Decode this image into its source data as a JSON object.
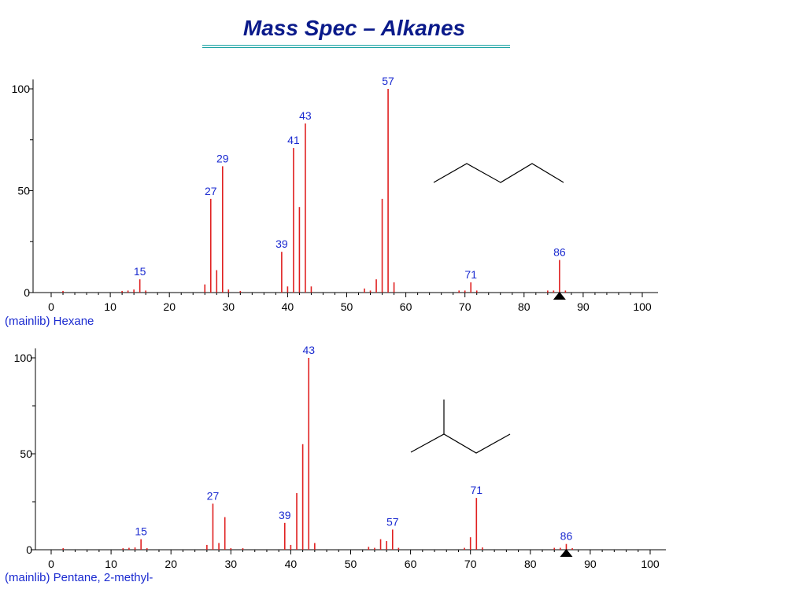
{
  "slide": {
    "title": "Mass Spec – Alkanes"
  },
  "chart_data": [
    {
      "type": "bar",
      "label": "(mainlib) Hexane",
      "x_ticks": [
        0,
        10,
        20,
        30,
        40,
        50,
        60,
        70,
        80,
        90,
        100
      ],
      "y_ticks": [
        0,
        50,
        100
      ],
      "xlim": [
        0,
        100
      ],
      "ylim": [
        0,
        100
      ],
      "molecular_ion_marker": 86,
      "color": "#e02020",
      "peaks": [
        {
          "mz": 2,
          "i": 0.8
        },
        {
          "mz": 12,
          "i": 0.8
        },
        {
          "mz": 13,
          "i": 1.0
        },
        {
          "mz": 14,
          "i": 1.5
        },
        {
          "mz": 15,
          "i": 6.5
        },
        {
          "mz": 16,
          "i": 1.0
        },
        {
          "mz": 26,
          "i": 4.0
        },
        {
          "mz": 27,
          "i": 46
        },
        {
          "mz": 28,
          "i": 11
        },
        {
          "mz": 29,
          "i": 62
        },
        {
          "mz": 30,
          "i": 1.5
        },
        {
          "mz": 32,
          "i": 0.8
        },
        {
          "mz": 39,
          "i": 20
        },
        {
          "mz": 40,
          "i": 3.0
        },
        {
          "mz": 41,
          "i": 71
        },
        {
          "mz": 42,
          "i": 42
        },
        {
          "mz": 43,
          "i": 83
        },
        {
          "mz": 44,
          "i": 3.0
        },
        {
          "mz": 53,
          "i": 2.0
        },
        {
          "mz": 54,
          "i": 1.0
        },
        {
          "mz": 55,
          "i": 6.5
        },
        {
          "mz": 56,
          "i": 46
        },
        {
          "mz": 57,
          "i": 100
        },
        {
          "mz": 58,
          "i": 5.0
        },
        {
          "mz": 69,
          "i": 1.0
        },
        {
          "mz": 70,
          "i": 1.0
        },
        {
          "mz": 71,
          "i": 5.0
        },
        {
          "mz": 72,
          "i": 1.0
        },
        {
          "mz": 84,
          "i": 1.0
        },
        {
          "mz": 85,
          "i": 1.0
        },
        {
          "mz": 86,
          "i": 16
        },
        {
          "mz": 87,
          "i": 1.0
        }
      ],
      "labeled_peaks": [
        15,
        27,
        29,
        39,
        41,
        43,
        57,
        71,
        86
      ]
    },
    {
      "type": "bar",
      "label": "(mainlib) Pentane, 2-methyl-",
      "x_ticks": [
        0,
        10,
        20,
        30,
        40,
        50,
        60,
        70,
        80,
        90,
        100
      ],
      "y_ticks": [
        0,
        50,
        100
      ],
      "xlim": [
        0,
        100
      ],
      "ylim": [
        0,
        100
      ],
      "molecular_ion_marker": 86,
      "color": "#e02020",
      "peaks": [
        {
          "mz": 2,
          "i": 0.8
        },
        {
          "mz": 12,
          "i": 0.8
        },
        {
          "mz": 13,
          "i": 1.0
        },
        {
          "mz": 14,
          "i": 1.2
        },
        {
          "mz": 15,
          "i": 5.5
        },
        {
          "mz": 16,
          "i": 0.8
        },
        {
          "mz": 26,
          "i": 2.5
        },
        {
          "mz": 27,
          "i": 24
        },
        {
          "mz": 28,
          "i": 3.5
        },
        {
          "mz": 29,
          "i": 17
        },
        {
          "mz": 30,
          "i": 0.8
        },
        {
          "mz": 32,
          "i": 0.8
        },
        {
          "mz": 39,
          "i": 14
        },
        {
          "mz": 40,
          "i": 2.5
        },
        {
          "mz": 41,
          "i": 29.5
        },
        {
          "mz": 42,
          "i": 55
        },
        {
          "mz": 43,
          "i": 100
        },
        {
          "mz": 44,
          "i": 3.5
        },
        {
          "mz": 53,
          "i": 1.5
        },
        {
          "mz": 54,
          "i": 1.0
        },
        {
          "mz": 55,
          "i": 5.5
        },
        {
          "mz": 56,
          "i": 4.5
        },
        {
          "mz": 57,
          "i": 10.5
        },
        {
          "mz": 58,
          "i": 1.0
        },
        {
          "mz": 69,
          "i": 1.0
        },
        {
          "mz": 70,
          "i": 6.5
        },
        {
          "mz": 71,
          "i": 27
        },
        {
          "mz": 72,
          "i": 1.2
        },
        {
          "mz": 84,
          "i": 1.0
        },
        {
          "mz": 85,
          "i": 1.0
        },
        {
          "mz": 86,
          "i": 3.0
        },
        {
          "mz": 87,
          "i": 0.8
        }
      ],
      "labeled_peaks": [
        15,
        27,
        39,
        43,
        57,
        71,
        86
      ]
    }
  ]
}
